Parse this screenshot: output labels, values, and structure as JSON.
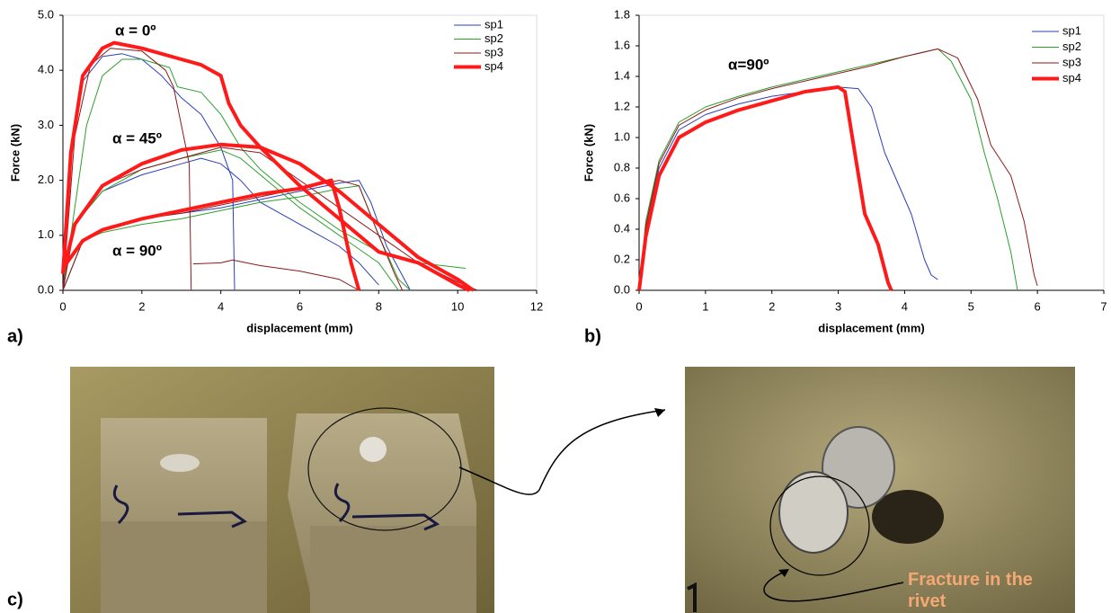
{
  "chart_data": [
    {
      "type": "line",
      "panel_label": "a)",
      "xlabel": "displacement (mm)",
      "ylabel": "Force (kN)",
      "xlim": [
        0,
        12
      ],
      "xticks": [
        0,
        2,
        4,
        6,
        8,
        10,
        12
      ],
      "ylim": [
        0,
        5
      ],
      "yticks": [
        {
          "value": 0,
          "label": "0.0"
        },
        {
          "value": 1,
          "label": "1.0"
        },
        {
          "value": 2,
          "label": "2.0"
        },
        {
          "value": 3,
          "label": "3.0"
        },
        {
          "value": 4,
          "label": "4.0"
        },
        {
          "value": 5,
          "label": "5.0"
        }
      ],
      "annotations": [
        "α = 0º",
        "α = 45º",
        "α = 90º"
      ],
      "series": [
        {
          "name": "sp1",
          "color": "#2b3fb8",
          "line_width": 1,
          "x": [
            0,
            0.2,
            0.5,
            1,
            1.5,
            2,
            2.5,
            3,
            3.5,
            4,
            4.3,
            4.35,
            null,
            0,
            0.3,
            1,
            2,
            3,
            3.5,
            4,
            4.5,
            5,
            6,
            7,
            7.5,
            8,
            null,
            0,
            0.5,
            1,
            2,
            3,
            4,
            5,
            6,
            7,
            7.5,
            7.8,
            8.2,
            8.8
          ],
          "values": [
            0,
            2.5,
            3.8,
            4.25,
            4.3,
            4.2,
            3.9,
            3.5,
            3.2,
            2.6,
            2.0,
            0,
            null,
            0,
            1.2,
            1.8,
            2.1,
            2.3,
            2.4,
            2.3,
            2.0,
            1.6,
            1.2,
            0.8,
            0.5,
            0.1,
            null,
            0,
            0.9,
            1.1,
            1.3,
            1.4,
            1.5,
            1.65,
            1.8,
            1.95,
            2.0,
            1.6,
            0.8,
            0
          ]
        },
        {
          "name": "sp2",
          "color": "#2ca02c",
          "line_width": 1,
          "x": [
            0,
            0.3,
            0.6,
            1,
            1.5,
            2,
            2.7,
            2.9,
            3.5,
            4,
            4.5,
            5,
            6,
            7,
            8,
            9,
            10.2,
            null,
            0,
            0.3,
            1,
            2,
            3,
            4,
            4.5,
            5,
            6,
            7,
            8,
            8.5,
            null,
            0,
            0.5,
            1,
            2,
            3,
            4,
            5,
            6,
            7,
            7.5,
            8,
            8.5,
            8.8
          ],
          "values": [
            0,
            1.5,
            3.0,
            3.9,
            4.2,
            4.2,
            4.05,
            3.7,
            3.6,
            3.2,
            2.6,
            2.2,
            1.6,
            1.1,
            0.7,
            0.5,
            0.4,
            null,
            0,
            1.2,
            1.8,
            2.2,
            2.4,
            2.55,
            2.4,
            2.1,
            1.5,
            1.0,
            0.5,
            0,
            null,
            0,
            0.9,
            1.05,
            1.2,
            1.3,
            1.45,
            1.6,
            1.7,
            1.85,
            1.9,
            1.0,
            0.2,
            0
          ]
        },
        {
          "name": "sp3",
          "color": "#8b1a1a",
          "line_width": 1,
          "x": [
            0,
            0.3,
            0.7,
            1.2,
            2,
            2.6,
            2.8,
            3.0,
            3.2,
            3.25,
            null,
            3.3,
            4,
            4.3,
            5,
            6,
            7,
            7.5,
            null,
            0,
            0.3,
            1,
            2,
            3,
            4,
            5,
            6,
            7,
            8,
            9,
            10,
            10.5,
            null,
            0,
            0.5,
            1,
            2,
            3,
            4,
            5,
            6,
            7,
            7.5,
            8,
            8.4,
            8.6
          ],
          "values": [
            0,
            2.8,
            4.1,
            4.4,
            4.35,
            4.0,
            3.7,
            3.0,
            2.3,
            0,
            null,
            0.48,
            0.5,
            0.55,
            0.45,
            0.35,
            0.2,
            0,
            null,
            0,
            1.2,
            1.9,
            2.2,
            2.4,
            2.6,
            2.5,
            2.0,
            1.5,
            1.0,
            0.5,
            0.15,
            0,
            null,
            0,
            0.9,
            1.1,
            1.3,
            1.4,
            1.55,
            1.7,
            1.85,
            2.0,
            1.9,
            1.0,
            0.3,
            0
          ]
        },
        {
          "name": "sp4",
          "color": "#ff1a1a",
          "line_width": 4,
          "x": [
            0,
            0.2,
            0.5,
            1,
            1.3,
            2,
            3,
            3.5,
            4,
            4.2,
            4.5,
            5,
            6,
            7,
            8,
            9,
            10,
            10.3,
            null,
            0,
            0.3,
            1,
            2,
            3,
            4,
            5,
            6,
            7,
            8,
            9,
            10,
            10.4,
            null,
            0,
            0.5,
            1,
            2,
            3,
            4,
            5,
            6,
            6.8,
            7,
            7.3,
            7.5
          ],
          "values": [
            0.3,
            2.5,
            3.9,
            4.4,
            4.5,
            4.4,
            4.2,
            4.1,
            3.9,
            3.4,
            3.0,
            2.6,
            1.9,
            1.3,
            0.7,
            0.5,
            0.1,
            0,
            null,
            0.3,
            1.2,
            1.9,
            2.3,
            2.55,
            2.65,
            2.6,
            2.3,
            1.8,
            1.2,
            0.6,
            0.2,
            0,
            null,
            0.4,
            0.9,
            1.1,
            1.3,
            1.45,
            1.6,
            1.75,
            1.85,
            2.0,
            1.5,
            0.5,
            0
          ]
        }
      ]
    },
    {
      "type": "line",
      "panel_label": "b)",
      "xlabel": "displacement (mm)",
      "ylabel": "Force (kN)",
      "xlim": [
        0,
        7
      ],
      "xticks": [
        0,
        1,
        2,
        3,
        4,
        5,
        6,
        7
      ],
      "ylim": [
        0,
        1.8
      ],
      "yticks": [
        {
          "value": 0,
          "label": "0.0"
        },
        0.2,
        0.4,
        0.6,
        0.8,
        {
          "value": 1,
          "label": "1.0"
        },
        1.2,
        1.4,
        1.6,
        1.8
      ],
      "annotations": [
        "α=90º"
      ],
      "series": [
        {
          "name": "sp1",
          "color": "#2b3fb8",
          "line_width": 1,
          "x": [
            0,
            0.1,
            0.3,
            0.6,
            1,
            1.5,
            2,
            2.5,
            3,
            3.3,
            3.5,
            3.7,
            3.9,
            4.1,
            4.3,
            4.4,
            4.5
          ],
          "values": [
            0,
            0.4,
            0.8,
            1.05,
            1.15,
            1.22,
            1.27,
            1.3,
            1.33,
            1.32,
            1.2,
            0.9,
            0.7,
            0.5,
            0.2,
            0.1,
            0.07
          ]
        },
        {
          "name": "sp2",
          "color": "#2ca02c",
          "line_width": 1,
          "x": [
            0,
            0.1,
            0.3,
            0.6,
            1,
            1.5,
            2,
            2.5,
            3,
            3.5,
            4,
            4.5,
            4.7,
            5,
            5.2,
            5.4,
            5.6,
            5.7
          ],
          "values": [
            0,
            0.45,
            0.85,
            1.1,
            1.2,
            1.27,
            1.33,
            1.38,
            1.43,
            1.48,
            1.53,
            1.58,
            1.5,
            1.25,
            0.9,
            0.6,
            0.25,
            0
          ]
        },
        {
          "name": "sp3",
          "color": "#8b1a1a",
          "line_width": 1,
          "x": [
            0,
            0.1,
            0.3,
            0.6,
            1,
            1.5,
            2,
            2.5,
            3,
            3.5,
            4,
            4.5,
            4.8,
            5.1,
            5.3,
            5.6,
            5.8,
            5.95,
            6
          ],
          "values": [
            0,
            0.42,
            0.83,
            1.08,
            1.18,
            1.26,
            1.32,
            1.37,
            1.42,
            1.47,
            1.53,
            1.58,
            1.52,
            1.25,
            0.95,
            0.75,
            0.45,
            0.1,
            0.03
          ]
        },
        {
          "name": "sp4",
          "color": "#ff1a1a",
          "line_width": 4,
          "x": [
            0,
            0.1,
            0.3,
            0.6,
            1,
            1.5,
            2,
            2.5,
            3,
            3.1,
            3.25,
            3.4,
            3.6,
            3.75,
            3.8
          ],
          "values": [
            0,
            0.35,
            0.75,
            1.0,
            1.1,
            1.18,
            1.24,
            1.3,
            1.33,
            1.3,
            0.9,
            0.5,
            0.3,
            0.05,
            0
          ]
        }
      ]
    }
  ],
  "photos": {
    "panel_label": "c)",
    "caption": "Fracture in the rivet"
  }
}
